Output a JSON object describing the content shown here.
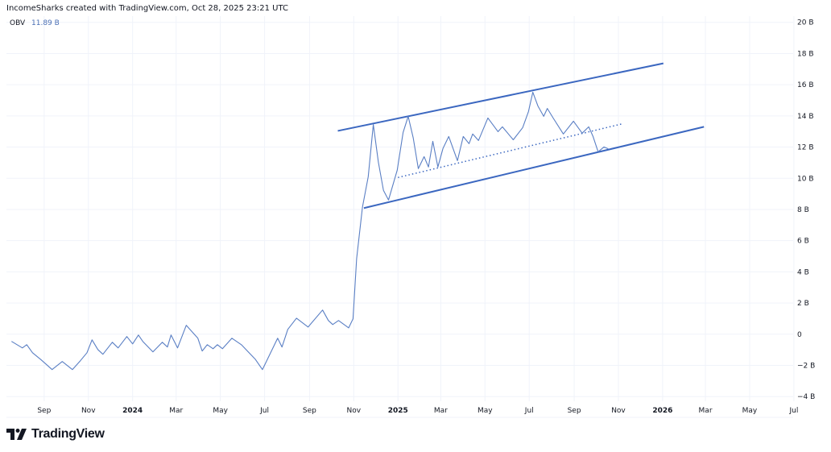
{
  "header": {
    "attribution": "IncomeSharks created with TradingView.com, Oct 28, 2025 23:21 UTC"
  },
  "legend": {
    "indicator": "OBV",
    "value": "11.89 B"
  },
  "brand": {
    "name": "TradingView"
  },
  "colors": {
    "series": "#5a7fc4",
    "trendline": "#3b67c0",
    "grid": "#f0f3fa",
    "axis_text": "#131722"
  },
  "chart_data": {
    "type": "line",
    "title": "",
    "xlabel": "",
    "ylabel": "",
    "y_unit": "B",
    "ylim": [
      -4.3,
      20.4
    ],
    "xlim": [
      "2023-07-11",
      "2026-06-30"
    ],
    "grid": true,
    "y_ticks": [
      -4,
      -2,
      0,
      2,
      4,
      6,
      8,
      10,
      12,
      14,
      16,
      18,
      20
    ],
    "y_tick_labels": [
      "−4 B",
      "−2 B",
      "0",
      "2 B",
      "4 B",
      "6 B",
      "8 B",
      "10 B",
      "12 B",
      "14 B",
      "16 B",
      "18 B",
      "20 B"
    ],
    "x_ticks": [
      {
        "date": "2023-09-01",
        "label": "Sep",
        "bold": false
      },
      {
        "date": "2023-11-01",
        "label": "Nov",
        "bold": false
      },
      {
        "date": "2024-01-01",
        "label": "2024",
        "bold": true
      },
      {
        "date": "2024-03-01",
        "label": "Mar",
        "bold": false
      },
      {
        "date": "2024-05-01",
        "label": "May",
        "bold": false
      },
      {
        "date": "2024-07-01",
        "label": "Jul",
        "bold": false
      },
      {
        "date": "2024-09-01",
        "label": "Sep",
        "bold": false
      },
      {
        "date": "2024-11-01",
        "label": "Nov",
        "bold": false
      },
      {
        "date": "2025-01-01",
        "label": "2025",
        "bold": true
      },
      {
        "date": "2025-03-01",
        "label": "Mar",
        "bold": false
      },
      {
        "date": "2025-05-01",
        "label": "May",
        "bold": false
      },
      {
        "date": "2025-07-01",
        "label": "Jul",
        "bold": false
      },
      {
        "date": "2025-09-01",
        "label": "Sep",
        "bold": false
      },
      {
        "date": "2025-11-01",
        "label": "Nov",
        "bold": false
      },
      {
        "date": "2026-01-01",
        "label": "2026",
        "bold": true
      },
      {
        "date": "2026-03-01",
        "label": "Mar",
        "bold": false
      },
      {
        "date": "2026-05-01",
        "label": "May",
        "bold": false
      },
      {
        "date": "2026-07-01",
        "label": "Jul",
        "bold": false
      }
    ],
    "series": [
      {
        "name": "OBV",
        "points": [
          [
            "2023-07-18",
            -0.46
          ],
          [
            "2023-08-02",
            -0.88
          ],
          [
            "2023-08-08",
            -0.67
          ],
          [
            "2023-08-16",
            -1.19
          ],
          [
            "2023-08-28",
            -1.65
          ],
          [
            "2023-09-12",
            -2.27
          ],
          [
            "2023-09-26",
            -1.75
          ],
          [
            "2023-10-10",
            -2.27
          ],
          [
            "2023-10-21",
            -1.7
          ],
          [
            "2023-10-30",
            -1.19
          ],
          [
            "2023-11-06",
            -0.36
          ],
          [
            "2023-11-14",
            -0.98
          ],
          [
            "2023-11-21",
            -1.29
          ],
          [
            "2023-12-04",
            -0.52
          ],
          [
            "2023-12-12",
            -0.88
          ],
          [
            "2023-12-24",
            -0.15
          ],
          [
            "2024-01-01",
            -0.62
          ],
          [
            "2024-01-09",
            -0.05
          ],
          [
            "2024-01-15",
            -0.46
          ],
          [
            "2024-01-29",
            -1.13
          ],
          [
            "2024-02-11",
            -0.52
          ],
          [
            "2024-02-18",
            -0.82
          ],
          [
            "2024-02-23",
            -0.05
          ],
          [
            "2024-03-03",
            -0.88
          ],
          [
            "2024-03-15",
            0.57
          ],
          [
            "2024-03-31",
            -0.26
          ],
          [
            "2024-04-06",
            -1.08
          ],
          [
            "2024-04-13",
            -0.67
          ],
          [
            "2024-04-21",
            -0.93
          ],
          [
            "2024-04-27",
            -0.67
          ],
          [
            "2024-05-04",
            -0.93
          ],
          [
            "2024-05-17",
            -0.26
          ],
          [
            "2024-05-30",
            -0.67
          ],
          [
            "2024-06-18",
            -1.6
          ],
          [
            "2024-06-28",
            -2.27
          ],
          [
            "2024-07-05",
            -1.6
          ],
          [
            "2024-07-19",
            -0.26
          ],
          [
            "2024-07-25",
            -0.82
          ],
          [
            "2024-08-02",
            0.31
          ],
          [
            "2024-08-14",
            1.03
          ],
          [
            "2024-08-30",
            0.46
          ],
          [
            "2024-09-19",
            1.55
          ],
          [
            "2024-09-27",
            0.88
          ],
          [
            "2024-10-03",
            0.62
          ],
          [
            "2024-10-11",
            0.88
          ],
          [
            "2024-10-25",
            0.41
          ],
          [
            "2024-10-31",
            0.98
          ],
          [
            "2024-11-05",
            4.85
          ],
          [
            "2024-11-13",
            8.14
          ],
          [
            "2024-11-21",
            10.1
          ],
          [
            "2024-11-28",
            13.45
          ],
          [
            "2024-12-05",
            11.03
          ],
          [
            "2024-12-12",
            9.23
          ],
          [
            "2024-12-19",
            8.61
          ],
          [
            "2024-12-31",
            10.52
          ],
          [
            "2025-01-08",
            12.94
          ],
          [
            "2025-01-15",
            13.97
          ],
          [
            "2025-01-22",
            12.58
          ],
          [
            "2025-01-29",
            10.62
          ],
          [
            "2025-02-06",
            11.39
          ],
          [
            "2025-02-12",
            10.72
          ],
          [
            "2025-02-18",
            12.37
          ],
          [
            "2025-02-25",
            10.72
          ],
          [
            "2025-03-04",
            11.91
          ],
          [
            "2025-03-12",
            12.68
          ],
          [
            "2025-03-24",
            11.13
          ],
          [
            "2025-04-01",
            12.68
          ],
          [
            "2025-04-09",
            12.22
          ],
          [
            "2025-04-14",
            12.84
          ],
          [
            "2025-04-22",
            12.42
          ],
          [
            "2025-05-05",
            13.87
          ],
          [
            "2025-05-19",
            12.99
          ],
          [
            "2025-05-25",
            13.3
          ],
          [
            "2025-06-09",
            12.47
          ],
          [
            "2025-06-22",
            13.25
          ],
          [
            "2025-06-30",
            14.28
          ],
          [
            "2025-07-06",
            15.52
          ],
          [
            "2025-07-13",
            14.64
          ],
          [
            "2025-07-21",
            13.97
          ],
          [
            "2025-07-26",
            14.48
          ],
          [
            "2025-08-03",
            13.87
          ],
          [
            "2025-08-17",
            12.84
          ],
          [
            "2025-08-31",
            13.66
          ],
          [
            "2025-09-12",
            12.89
          ],
          [
            "2025-09-21",
            13.3
          ],
          [
            "2025-09-27",
            12.68
          ],
          [
            "2025-10-04",
            11.7
          ],
          [
            "2025-10-12",
            12.01
          ],
          [
            "2025-10-18",
            11.89
          ]
        ]
      }
    ],
    "annotations": [
      {
        "type": "trendline",
        "style": "solid",
        "name": "upper-channel-line",
        "from": [
          "2024-10-10",
          13.04
        ],
        "to": [
          "2026-01-02",
          17.37
        ]
      },
      {
        "type": "trendline",
        "style": "solid",
        "name": "lower-channel-line",
        "from": [
          "2024-11-15",
          8.09
        ],
        "to": [
          "2026-02-27",
          13.3
        ]
      },
      {
        "type": "trendline",
        "style": "dotted",
        "name": "mid-channel-line",
        "from": [
          "2025-01-01",
          10.05
        ],
        "to": [
          "2025-11-08",
          13.51
        ]
      }
    ]
  }
}
